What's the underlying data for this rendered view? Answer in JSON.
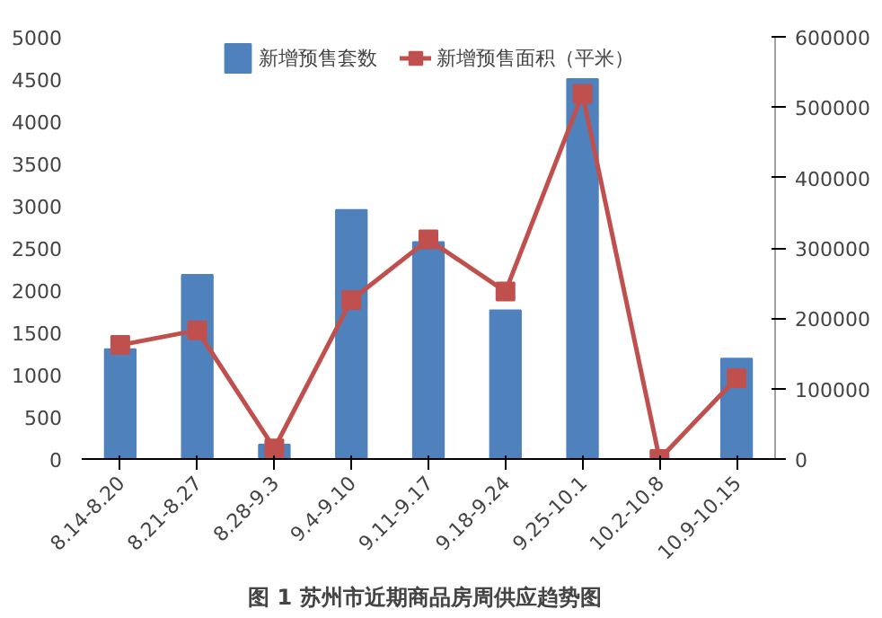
{
  "chart_data": {
    "type": "bar",
    "title": "图 1  苏州市近期商品房周供应趋势图",
    "categories": [
      "8.14-8.20",
      "8.21-8.27",
      "8.28-9.3",
      "9.4-9.10",
      "9.11-9.17",
      "9.18-9.24",
      "9.25-10.1",
      "10.2-10.8",
      "10.9-10.15"
    ],
    "series": [
      {
        "name": "新增预售套数",
        "color": "#4f81bd",
        "values": [
          1300,
          2180,
          170,
          2950,
          2570,
          1760,
          4500,
          0,
          1190
        ]
      },
      {
        "name": "新增预售面积（平米）",
        "type": "line",
        "axis": "y2",
        "color": "#c0504d",
        "marker": "square",
        "values": [
          162000,
          183000,
          15000,
          226000,
          312000,
          238000,
          519000,
          0,
          115000
        ]
      }
    ],
    "ylim": [
      0,
      5000
    ],
    "yticks": [
      0,
      500,
      1000,
      1500,
      2000,
      2500,
      3000,
      3500,
      4000,
      4500,
      5000
    ],
    "y2lim": [
      0,
      600000
    ],
    "y2ticks": [
      0,
      100000,
      200000,
      300000,
      400000,
      500000,
      600000
    ],
    "grid": false,
    "legend": "top"
  }
}
